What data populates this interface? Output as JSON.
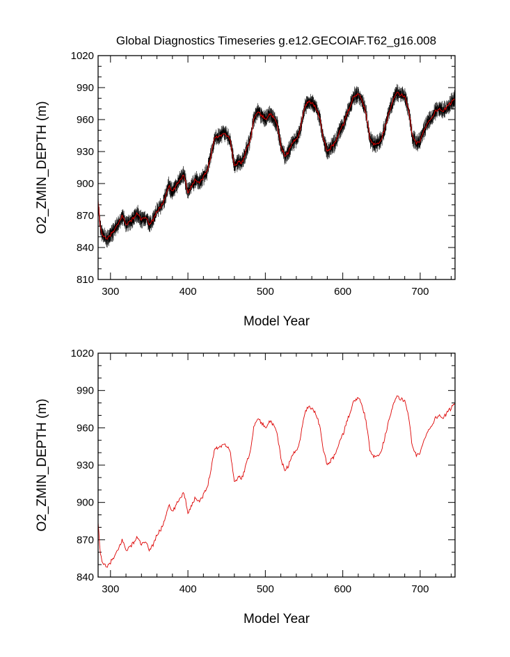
{
  "figure_title": "Global Diagnostics Timeseries g.e12.GECOIAF.T62_g16.008",
  "chart_data": [
    {
      "type": "line",
      "name": "top-panel",
      "title": "Global Diagnostics Timeseries g.e12.GECOIAF.T62_g16.008",
      "xlabel": "Model Year",
      "ylabel": "O2_ZMIN_DEPTH (m)",
      "xlim": [
        284,
        745
      ],
      "ylim": [
        810,
        1020
      ],
      "xticks": [
        300,
        400,
        500,
        600,
        700
      ],
      "xtick_labels": [
        "300",
        "400",
        "500",
        "600",
        "700"
      ],
      "yticks": [
        810,
        840,
        870,
        900,
        930,
        960,
        990,
        1020
      ],
      "ytick_labels": [
        "810",
        "840",
        "870",
        "900",
        "930",
        "960",
        "990",
        "1020"
      ],
      "series": [
        {
          "name": "monthly",
          "color": "#000000"
        },
        {
          "name": "annual-mean",
          "color": "#dd0000"
        }
      ]
    },
    {
      "type": "line",
      "name": "bottom-panel",
      "xlabel": "Model Year",
      "ylabel": "O2_ZMIN_DEPTH (m)",
      "xlim": [
        284,
        745
      ],
      "ylim": [
        840,
        1020
      ],
      "xticks": [
        300,
        400,
        500,
        600,
        700
      ],
      "xtick_labels": [
        "300",
        "400",
        "500",
        "600",
        "700"
      ],
      "yticks": [
        840,
        870,
        900,
        930,
        960,
        990,
        1020
      ],
      "ytick_labels": [
        "840",
        "870",
        "900",
        "930",
        "960",
        "990",
        "1020"
      ],
      "series": [
        {
          "name": "annual-mean",
          "color": "#dd0000"
        }
      ]
    }
  ],
  "annual_mean": {
    "x": [
      284,
      287,
      290,
      295,
      300,
      305,
      310,
      315,
      320,
      325,
      330,
      335,
      340,
      345,
      350,
      355,
      360,
      365,
      370,
      375,
      380,
      385,
      390,
      395,
      400,
      405,
      410,
      415,
      420,
      425,
      430,
      435,
      440,
      445,
      450,
      455,
      460,
      465,
      470,
      475,
      480,
      485,
      490,
      495,
      500,
      505,
      510,
      515,
      520,
      525,
      530,
      535,
      540,
      545,
      550,
      555,
      560,
      565,
      570,
      575,
      580,
      585,
      590,
      595,
      600,
      605,
      610,
      615,
      620,
      625,
      630,
      635,
      640,
      645,
      650,
      655,
      660,
      665,
      670,
      675,
      680,
      685,
      690,
      695,
      700,
      705,
      710,
      715,
      720,
      725,
      730,
      735,
      740,
      745
    ],
    "y": [
      883,
      858,
      852,
      847,
      852,
      856,
      862,
      870,
      862,
      864,
      868,
      872,
      866,
      868,
      862,
      866,
      874,
      878,
      886,
      898,
      892,
      898,
      904,
      908,
      892,
      898,
      904,
      901,
      906,
      912,
      928,
      944,
      944,
      947,
      946,
      940,
      916,
      920,
      920,
      930,
      940,
      960,
      968,
      964,
      960,
      966,
      962,
      956,
      936,
      925,
      930,
      938,
      942,
      950,
      970,
      977,
      976,
      972,
      962,
      942,
      930,
      934,
      938,
      948,
      954,
      964,
      974,
      982,
      984,
      978,
      966,
      942,
      936,
      938,
      942,
      954,
      968,
      978,
      985,
      983,
      982,
      970,
      944,
      938,
      940,
      950,
      958,
      962,
      968,
      970,
      968,
      972,
      976,
      980
    ]
  }
}
